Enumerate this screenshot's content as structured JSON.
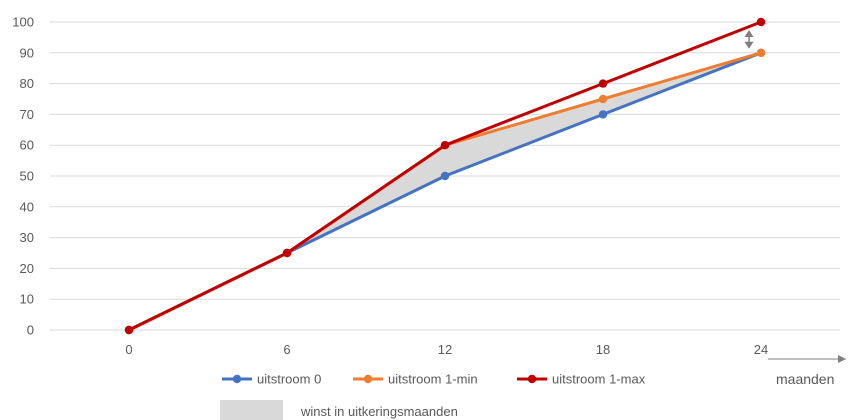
{
  "chart_data": {
    "type": "line",
    "x": [
      0,
      6,
      12,
      18,
      24
    ],
    "x_tick_labels": [
      "0",
      "6",
      "12",
      "18",
      "24"
    ],
    "xlabel": "maanden",
    "ylim": [
      0,
      100
    ],
    "y_ticks": [
      0,
      10,
      20,
      30,
      40,
      50,
      60,
      70,
      80,
      90,
      100
    ],
    "grid": true,
    "legend_placement": "bottom",
    "series": [
      {
        "name": "uitstroom 0",
        "color": "#4472C4",
        "values": [
          0,
          25,
          50,
          70,
          90
        ]
      },
      {
        "name": "uitstroom 1-min",
        "color": "#ED7D31",
        "values": [
          0,
          25,
          60,
          75,
          90
        ]
      },
      {
        "name": "uitstroom 1-max",
        "color": "#C00000",
        "values": [
          0,
          25,
          60,
          80,
          100
        ]
      }
    ],
    "area": {
      "label": "winst in uitkeringsmaanden",
      "color": "#D9D9D9",
      "lower_series": "uitstroom 0",
      "upper_series": "uitstroom 1-min",
      "x_from": 6,
      "x_to": 24
    },
    "annotation": {
      "type": "double-arrow",
      "x": 24,
      "from": 90,
      "to": 100,
      "color": "#7F7F7F"
    }
  }
}
